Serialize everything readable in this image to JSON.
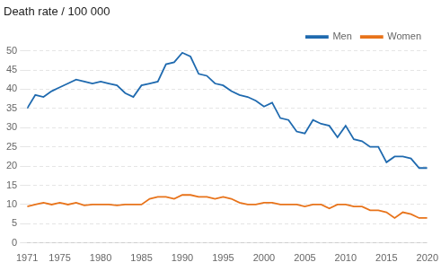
{
  "chart_data": {
    "type": "line",
    "title": "Death rate / 100 000",
    "x": [
      1971,
      1972,
      1973,
      1974,
      1975,
      1976,
      1977,
      1978,
      1979,
      1980,
      1981,
      1982,
      1983,
      1984,
      1985,
      1986,
      1987,
      1988,
      1989,
      1990,
      1991,
      1992,
      1993,
      1994,
      1995,
      1996,
      1997,
      1998,
      1999,
      2000,
      2001,
      2002,
      2003,
      2004,
      2005,
      2006,
      2007,
      2008,
      2009,
      2010,
      2011,
      2012,
      2013,
      2014,
      2015,
      2016,
      2017,
      2018,
      2019,
      2020
    ],
    "series": [
      {
        "name": "Men",
        "color": "#1F6AAF",
        "values": [
          35.0,
          38.5,
          38.0,
          39.5,
          40.5,
          41.5,
          42.5,
          42.0,
          41.5,
          42.0,
          41.5,
          41.0,
          39.0,
          38.0,
          41.0,
          41.5,
          42.0,
          46.5,
          47.0,
          49.5,
          48.5,
          44.0,
          43.5,
          41.5,
          41.0,
          39.5,
          38.5,
          38.0,
          37.0,
          35.5,
          36.5,
          32.5,
          32.0,
          29.0,
          28.5,
          32.0,
          31.0,
          30.5,
          27.5,
          30.5,
          27.0,
          26.5,
          25.0,
          25.0,
          21.0,
          22.5,
          22.5,
          22.0,
          19.5,
          19.5
        ]
      },
      {
        "name": "Women",
        "color": "#E8731A",
        "values": [
          9.5,
          10.0,
          10.5,
          10.0,
          10.5,
          10.0,
          10.5,
          9.8,
          10.0,
          10.0,
          10.0,
          9.8,
          10.0,
          10.0,
          10.0,
          11.5,
          12.0,
          12.0,
          11.5,
          12.5,
          12.5,
          12.0,
          12.0,
          11.5,
          12.0,
          11.5,
          10.5,
          10.0,
          10.0,
          10.5,
          10.5,
          10.0,
          10.0,
          10.0,
          9.5,
          10.0,
          10.0,
          9.0,
          10.0,
          10.0,
          9.5,
          9.5,
          8.5,
          8.5,
          8.0,
          6.5,
          8.0,
          7.5,
          6.5,
          6.5
        ]
      }
    ],
    "xlim": [
      1971,
      2020
    ],
    "xticks": [
      1971,
      1975,
      1980,
      1985,
      1990,
      1995,
      2000,
      2005,
      2010,
      2015,
      2020
    ],
    "ylim": [
      0,
      50
    ],
    "yticks": [
      0,
      5,
      10,
      15,
      20,
      25,
      30,
      35,
      40,
      45,
      50
    ],
    "grid": "y",
    "legend": "upper right"
  }
}
